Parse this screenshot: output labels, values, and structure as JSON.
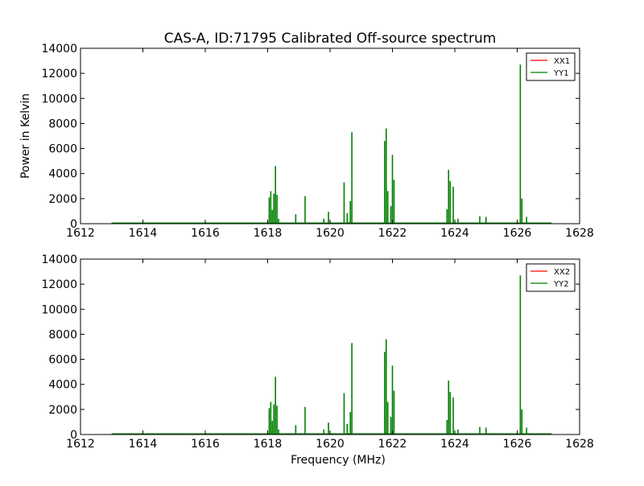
{
  "title": "CAS-A, ID:71795 Calibrated Off-source spectrum",
  "colors": {
    "xx": "#ff0000",
    "yy": "#008000"
  },
  "chart_data": [
    {
      "type": "line",
      "xlabel": "",
      "ylabel": "Power in Kelvin",
      "xlim": [
        1612,
        1628
      ],
      "ylim": [
        0,
        14000
      ],
      "xticks": [
        "1612",
        "1614",
        "1616",
        "1618",
        "1620",
        "1622",
        "1624",
        "1626",
        "1628"
      ],
      "yticks": [
        "0",
        "2000",
        "4000",
        "6000",
        "8000",
        "10000",
        "12000",
        "14000"
      ],
      "legend_position": "top-right",
      "series": [
        {
          "name": "XX1",
          "color": "#ff0000",
          "baseline": 40,
          "x": [
            1613.0,
            1618.0,
            1618.3,
            1620.6,
            1621.8,
            1622.0,
            1623.8,
            1626.1,
            1627.1
          ],
          "y": [
            40,
            40,
            80,
            120,
            200,
            120,
            150,
            120,
            40
          ]
        },
        {
          "name": "YY1",
          "color": "#008000",
          "baseline": 60,
          "x": [
            1618.05,
            1618.1,
            1618.15,
            1618.2,
            1618.25,
            1618.3,
            1618.35,
            1618.9,
            1619.2,
            1619.8,
            1619.95,
            1620.45,
            1620.55,
            1620.65,
            1620.7,
            1621.75,
            1621.8,
            1621.85,
            1621.95,
            1622.0,
            1622.05,
            1623.75,
            1623.8,
            1623.85,
            1623.95,
            1624.1,
            1624.8,
            1625.0,
            1626.1,
            1626.15,
            1626.3
          ],
          "y": [
            2100,
            2600,
            1100,
            2400,
            4600,
            2300,
            400,
            750,
            2200,
            400,
            950,
            3300,
            850,
            1800,
            7300,
            6600,
            7600,
            2600,
            1400,
            5500,
            3500,
            1150,
            4300,
            3400,
            2950,
            400,
            600,
            550,
            12700,
            2000,
            550
          ]
        }
      ]
    },
    {
      "type": "line",
      "xlabel": "Frequency (MHz)",
      "ylabel": "",
      "xlim": [
        1612,
        1628
      ],
      "ylim": [
        0,
        14000
      ],
      "xticks": [
        "1612",
        "1614",
        "1616",
        "1618",
        "1620",
        "1622",
        "1624",
        "1626",
        "1628"
      ],
      "yticks": [
        "0",
        "2000",
        "4000",
        "6000",
        "8000",
        "10000",
        "12000",
        "14000"
      ],
      "legend_position": "top-right",
      "series": [
        {
          "name": "XX2",
          "color": "#ff0000",
          "baseline": 40,
          "x": [
            1613.0,
            1618.0,
            1618.3,
            1620.6,
            1621.8,
            1622.0,
            1623.8,
            1626.1,
            1627.1
          ],
          "y": [
            40,
            40,
            80,
            120,
            200,
            120,
            150,
            120,
            40
          ]
        },
        {
          "name": "YY2",
          "color": "#008000",
          "baseline": 60,
          "x": [
            1618.05,
            1618.1,
            1618.15,
            1618.2,
            1618.25,
            1618.3,
            1618.35,
            1618.9,
            1619.2,
            1619.8,
            1619.95,
            1620.45,
            1620.55,
            1620.65,
            1620.7,
            1621.75,
            1621.8,
            1621.85,
            1621.95,
            1622.0,
            1622.05,
            1623.75,
            1623.8,
            1623.85,
            1623.95,
            1624.1,
            1624.8,
            1625.0,
            1626.1,
            1626.15,
            1626.3
          ],
          "y": [
            2100,
            2600,
            1100,
            2400,
            4600,
            2300,
            400,
            750,
            2200,
            400,
            950,
            3300,
            850,
            1800,
            7300,
            6600,
            7600,
            2600,
            1400,
            5500,
            3500,
            1150,
            4300,
            3400,
            2950,
            400,
            600,
            550,
            12700,
            2000,
            550
          ]
        }
      ]
    }
  ]
}
